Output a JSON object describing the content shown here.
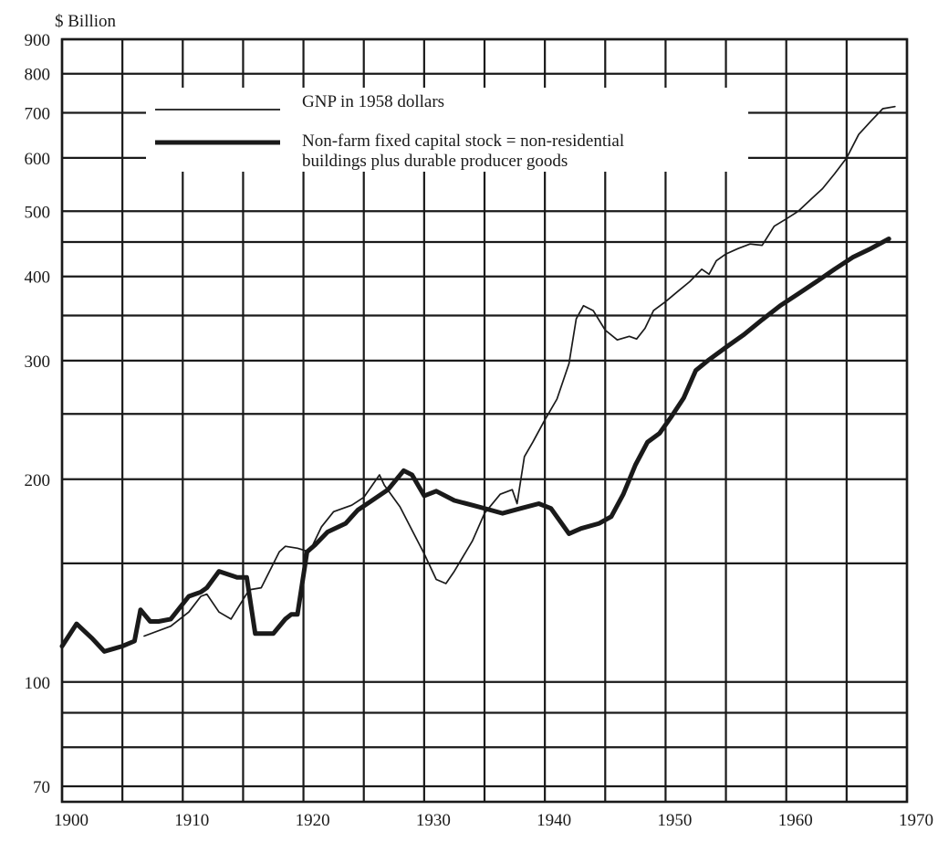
{
  "chart_data": {
    "type": "line",
    "y_scale": "log",
    "y_unit_label": "$ Billion",
    "xlim": [
      1900,
      1970
    ],
    "ylim": [
      65,
      900
    ],
    "grid": true,
    "legend_placement": "top-left",
    "x_ticks": [
      1900,
      1910,
      1920,
      1930,
      1940,
      1950,
      1960,
      1970
    ],
    "y_ticks": [
      70,
      100,
      200,
      300,
      400,
      500,
      600,
      700,
      800,
      900
    ],
    "x_gridlines": [
      1900,
      1905,
      1910,
      1915,
      1920,
      1925,
      1930,
      1935,
      1940,
      1945,
      1950,
      1955,
      1960,
      1965,
      1970
    ],
    "y_gridlines": [
      70,
      80,
      90,
      100,
      150,
      200,
      250,
      300,
      350,
      400,
      450,
      500,
      600,
      700,
      800,
      900
    ],
    "series": [
      {
        "name": "GNP in 1958 dollars",
        "style": "thin",
        "color": "#1a1a1a",
        "points": [
          [
            1906.8,
            117
          ],
          [
            1909,
            121
          ],
          [
            1910.5,
            127
          ],
          [
            1911.5,
            134
          ],
          [
            1912,
            135
          ],
          [
            1913,
            127
          ],
          [
            1914,
            124
          ],
          [
            1915.5,
            137
          ],
          [
            1916.5,
            138
          ],
          [
            1918,
            156
          ],
          [
            1918.5,
            159
          ],
          [
            1919.5,
            158
          ],
          [
            1920.5,
            156
          ],
          [
            1921.5,
            170
          ],
          [
            1922.5,
            179
          ],
          [
            1924,
            183
          ],
          [
            1925,
            188
          ],
          [
            1926.3,
            203
          ],
          [
            1926.7,
            196
          ],
          [
            1928,
            182
          ],
          [
            1929,
            168
          ],
          [
            1930,
            155
          ],
          [
            1931,
            142
          ],
          [
            1931.8,
            140
          ],
          [
            1932.5,
            146
          ],
          [
            1934,
            162
          ],
          [
            1935,
            178
          ],
          [
            1936.3,
            190
          ],
          [
            1937.3,
            193
          ],
          [
            1937.7,
            184
          ],
          [
            1938.3,
            216
          ],
          [
            1939,
            227
          ],
          [
            1940,
            245
          ],
          [
            1941,
            263
          ],
          [
            1942,
            297
          ],
          [
            1942.6,
            346
          ],
          [
            1943.2,
            362
          ],
          [
            1944,
            356
          ],
          [
            1945,
            333
          ],
          [
            1946,
            322
          ],
          [
            1947,
            326
          ],
          [
            1947.6,
            323
          ],
          [
            1948.3,
            335
          ],
          [
            1949,
            356
          ],
          [
            1950,
            367
          ],
          [
            1951,
            380
          ],
          [
            1952,
            393
          ],
          [
            1953,
            410
          ],
          [
            1953.6,
            403
          ],
          [
            1954.2,
            422
          ],
          [
            1955,
            432
          ],
          [
            1956,
            440
          ],
          [
            1957,
            447
          ],
          [
            1958,
            445
          ],
          [
            1959,
            475
          ],
          [
            1960,
            487
          ],
          [
            1961,
            500
          ],
          [
            1962,
            520
          ],
          [
            1963,
            540
          ],
          [
            1964,
            568
          ],
          [
            1965,
            600
          ],
          [
            1966,
            650
          ],
          [
            1967,
            680
          ],
          [
            1968,
            710
          ],
          [
            1969,
            715
          ]
        ]
      },
      {
        "name": "Non-farm fixed capital stock = non-residential buildings plus durable producer goods",
        "style": "thick",
        "color": "#1a1a1a",
        "points": [
          [
            1900,
            113
          ],
          [
            1901.2,
            122
          ],
          [
            1902.5,
            116
          ],
          [
            1903.5,
            111
          ],
          [
            1905,
            113
          ],
          [
            1906,
            115
          ],
          [
            1906.5,
            128
          ],
          [
            1907.3,
            123
          ],
          [
            1908,
            123
          ],
          [
            1909,
            124
          ],
          [
            1910.5,
            134
          ],
          [
            1911.5,
            136
          ],
          [
            1912,
            138
          ],
          [
            1913,
            146
          ],
          [
            1914.5,
            143
          ],
          [
            1915.3,
            143
          ],
          [
            1916,
            118
          ],
          [
            1917.5,
            118
          ],
          [
            1918.5,
            124
          ],
          [
            1919,
            126
          ],
          [
            1919.5,
            126
          ],
          [
            1920.3,
            156
          ],
          [
            1921,
            160
          ],
          [
            1922,
            167
          ],
          [
            1923.5,
            172
          ],
          [
            1924.5,
            180
          ],
          [
            1925.5,
            185
          ],
          [
            1927,
            193
          ],
          [
            1928.3,
            206
          ],
          [
            1929,
            203
          ],
          [
            1930,
            189
          ],
          [
            1931,
            192
          ],
          [
            1932.5,
            186
          ],
          [
            1934,
            183
          ],
          [
            1935.5,
            180
          ],
          [
            1936.5,
            178
          ],
          [
            1938,
            181
          ],
          [
            1939.5,
            184
          ],
          [
            1940.5,
            181
          ],
          [
            1942,
            166
          ],
          [
            1943,
            169
          ],
          [
            1944.5,
            172
          ],
          [
            1945.5,
            176
          ],
          [
            1946.5,
            190
          ],
          [
            1947.5,
            210
          ],
          [
            1948.5,
            227
          ],
          [
            1949.5,
            234
          ],
          [
            1950.5,
            248
          ],
          [
            1951.5,
            264
          ],
          [
            1952.5,
            290
          ],
          [
            1953.5,
            300
          ],
          [
            1955,
            314
          ],
          [
            1956.5,
            328
          ],
          [
            1958,
            345
          ],
          [
            1959.5,
            362
          ],
          [
            1961,
            377
          ],
          [
            1962.5,
            393
          ],
          [
            1964,
            410
          ],
          [
            1965.5,
            427
          ],
          [
            1967,
            440
          ],
          [
            1968.5,
            455
          ]
        ]
      }
    ]
  }
}
